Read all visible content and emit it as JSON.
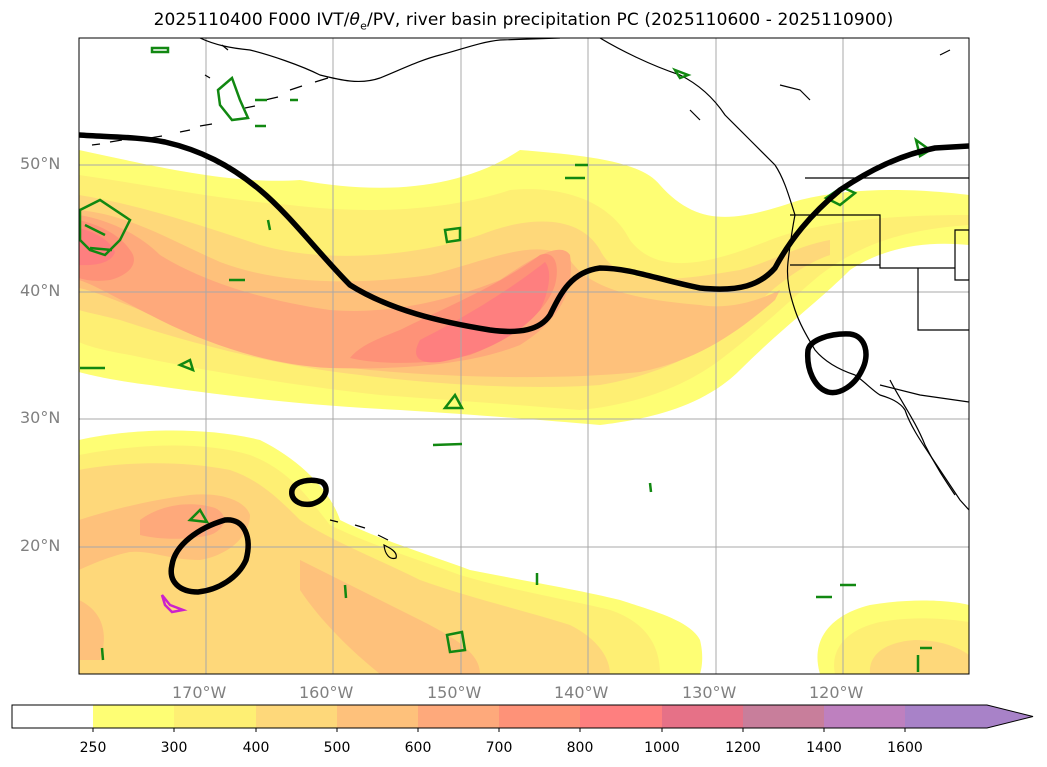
{
  "title": {
    "prefix": "2025110400 F000 IVT/",
    "theta_symbol": "θ",
    "theta_sub": "e",
    "suffix": "/PV, river basin precipitation PC (2025110600 - 2025110900)"
  },
  "latitude_labels": [
    "50°N",
    "40°N",
    "30°N",
    "20°N"
  ],
  "longitude_labels": [
    "170°W",
    "160°W",
    "150°W",
    "140°W",
    "130°W",
    "120°W"
  ],
  "colorbar": {
    "labels": [
      "250",
      "300",
      "400",
      "500",
      "600",
      "700",
      "800",
      "1000",
      "1200",
      "1400",
      "1600"
    ],
    "colors": [
      "#ffffff",
      "#fefe74",
      "#feef73",
      "#fed87a",
      "#fec17b",
      "#fea97b",
      "#fe9278",
      "#fe7f7f",
      "#e67187",
      "#c87e9b",
      "#be80bf",
      "#a882c8"
    ],
    "extend": "max"
  },
  "colors": {
    "dynamic_tropopause": "#000000",
    "pv_green": "#118811",
    "pv_magenta": "#cc22cc",
    "grid": "#a8a8a8",
    "coast": "#000000"
  }
}
